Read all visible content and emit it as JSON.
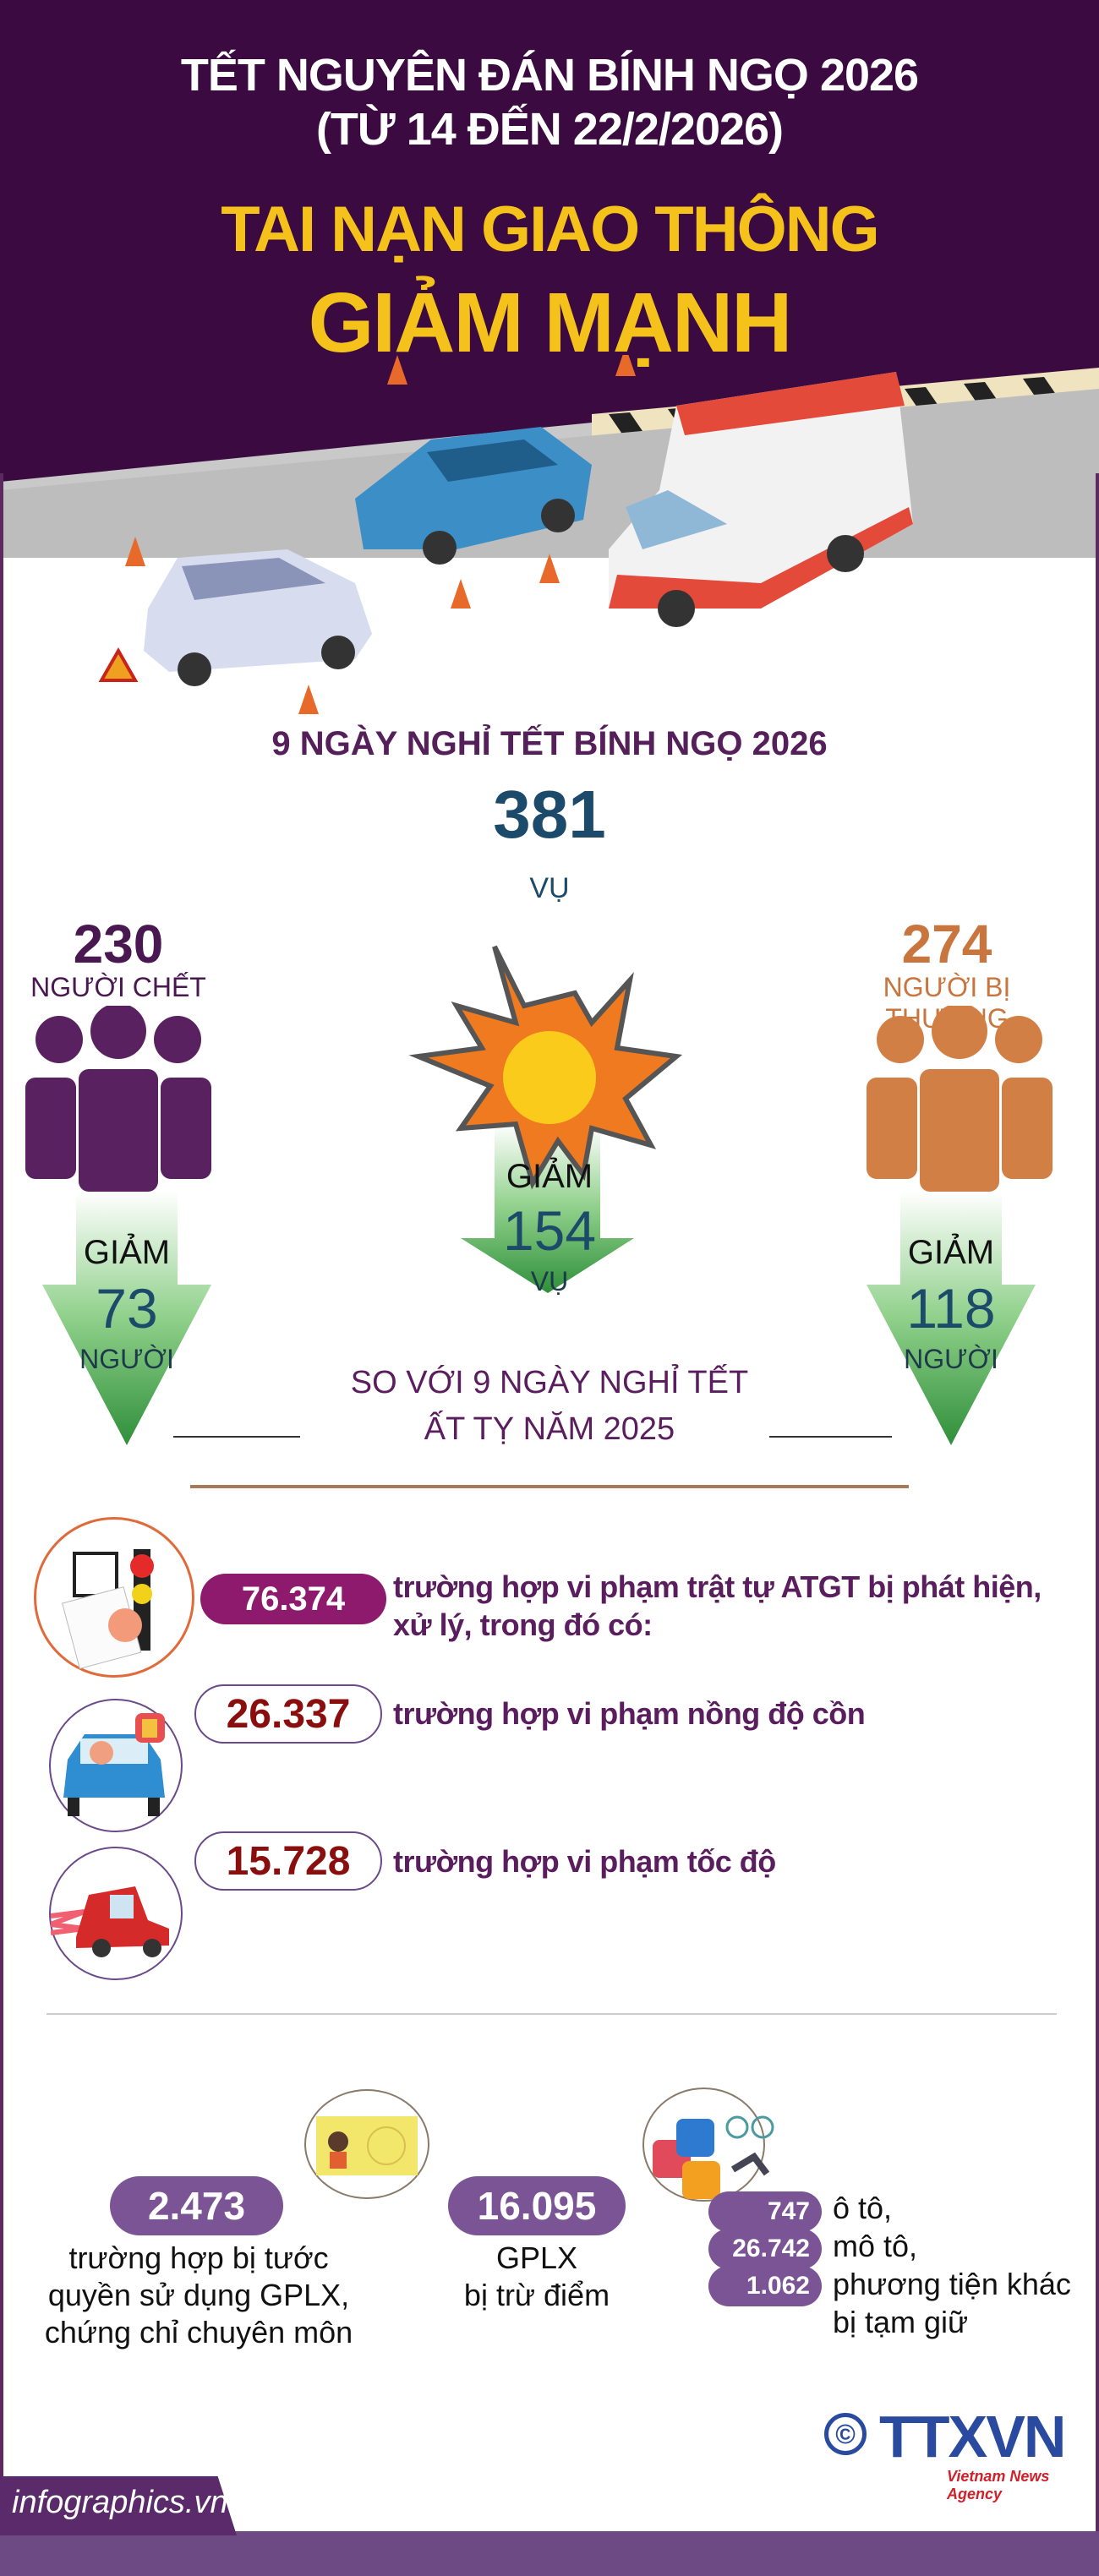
{
  "header": {
    "title_line1": "TẾT NGUYÊN ĐÁN BÍNH NGỌ 2026",
    "title_line2": "(TỪ 14 ĐẾN 22/2/2026)",
    "headline_line1": "TAI NẠN GIAO THÔNG",
    "headline_line2": "GIẢM MẠNH"
  },
  "summary": {
    "period_title": "9 NGÀY NGHỈ TẾT BÍNH NGỌ 2026",
    "accidents": {
      "value": "381",
      "unit": "VỤ",
      "decrease_label": "GIẢM",
      "decrease_value": "154",
      "decrease_unit": "VỤ"
    },
    "deaths": {
      "value": "230",
      "label": "NGƯỜI CHẾT",
      "decrease_label": "GIẢM",
      "decrease_value": "73",
      "decrease_unit": "NGƯỜI"
    },
    "injured": {
      "value": "274",
      "label": "NGƯỜI BỊ THƯƠNG",
      "decrease_label": "GIẢM",
      "decrease_value": "118",
      "decrease_unit": "NGƯỜI"
    },
    "comparison_line1": "SO VỚI 9 NGÀY NGHỈ TẾT",
    "comparison_line2": "ẤT TỴ NĂM 2025"
  },
  "violations": [
    {
      "value": "76.374",
      "text_line1": "trường hợp vi phạm trật tự ATGT bị phát hiện,",
      "text_line2": "xử lý, trong đó có:",
      "icon": "traffic-ticket-icon"
    },
    {
      "value": "26.337",
      "text_line1": "trường hợp vi phạm nồng độ cồn",
      "icon": "drunk-driver-icon"
    },
    {
      "value": "15.728",
      "text_line1": "trường hợp vi phạm tốc độ",
      "icon": "speeding-car-icon"
    }
  ],
  "penalties": {
    "revoked": {
      "value": "2.473",
      "lines": [
        "trường hợp bị tước",
        "quyền sử dụng GPLX,",
        "chứng chỉ chuyên môn"
      ]
    },
    "points": {
      "value": "16.095",
      "lines": [
        "GPLX",
        "bị trừ điểm"
      ]
    },
    "seized": [
      {
        "value": "747",
        "label": "ô tô,"
      },
      {
        "value": "26.742",
        "label": "mô tô,"
      },
      {
        "value": "1.062",
        "label": "phương tiện khác"
      }
    ],
    "seized_suffix": "bị tạm giữ"
  },
  "footer": {
    "site": "infographics.vn",
    "agency": "TTXVN",
    "agency_sub": "Vietnam News Agency",
    "copyright": "©"
  },
  "colors": {
    "header_bg": "#3b0a40",
    "headline": "#f5c21b",
    "deaths": "#5a2160",
    "injured": "#d17f45",
    "accidents": "#1c4a6a",
    "arrow": "#3c9a45",
    "pill_main": "#8e1a6e",
    "pill_red_text": "#8a0e0e",
    "pill_bottom": "#7a5494"
  }
}
